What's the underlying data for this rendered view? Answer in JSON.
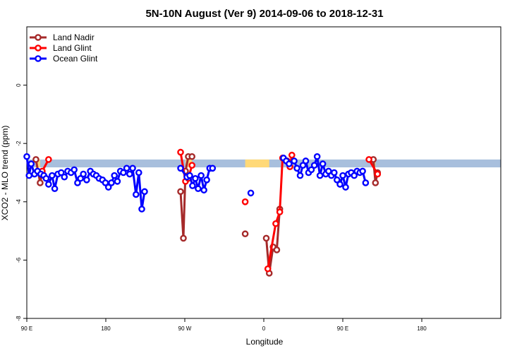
{
  "chart_data": {
    "type": "line",
    "title": "5N-10N August (Ver 9)   2014-09-06 to 2018-12-31",
    "xlabel": "Longitude",
    "ylabel": "XCO2 - MLO trend (ppm)",
    "xlim": [
      -90,
      180
    ],
    "ylim": [
      -8,
      2
    ],
    "x_ticks": [
      {
        "value": -90,
        "label": "90 E"
      },
      {
        "value": -45,
        "label": "180"
      },
      {
        "value": 0,
        "label": "90 W"
      },
      {
        "value": 45,
        "label": "0"
      },
      {
        "value": 90,
        "label": "90 E"
      },
      {
        "value": 135,
        "label": "180"
      }
    ],
    "y_ticks": [
      {
        "value": 0,
        "label": "0"
      },
      {
        "value": -2,
        "label": "-2"
      },
      {
        "value": -4,
        "label": "-4"
      },
      {
        "value": -6,
        "label": "-6"
      },
      {
        "value": -8,
        "label": "-8"
      }
    ],
    "grid": false,
    "legend_position": "top-left",
    "landmask_band": {
      "y_range": [
        -2.55,
        -2.82
      ],
      "ocean_color": "#a8bfdd",
      "land_color": "#ffd978",
      "land_spans": [
        [
          -84.8,
          -82.4
        ],
        [
          0.4,
          4.1
        ],
        [
          34.4,
          48.1
        ],
        [
          107.4,
          108.6
        ]
      ]
    },
    "series": [
      {
        "name": "Land Nadir",
        "color": "#a52a2a",
        "segments": [
          [
            [
              -84.8,
              -2.55
            ],
            [
              -82.4,
              -3.35
            ],
            [
              -81.2,
              -3.0
            ]
          ],
          [
            [
              -2.4,
              -3.65
            ],
            [
              -0.8,
              -5.25
            ],
            [
              0.4,
              -2.95
            ],
            [
              2.0,
              -2.45
            ],
            [
              4.1,
              -2.45
            ]
          ],
          [
            [
              34.4,
              -5.1
            ]
          ],
          [
            [
              46.4,
              -5.25
            ],
            [
              48.1,
              -6.45
            ],
            [
              50.3,
              -5.55
            ],
            [
              52.4,
              -5.65
            ],
            [
              54.1,
              -4.25
            ]
          ],
          [
            [
              107.4,
              -2.55
            ],
            [
              108.6,
              -3.35
            ],
            [
              109.8,
              -3.0
            ]
          ]
        ]
      },
      {
        "name": "Land Glint",
        "color": "#ff0000",
        "segments": [
          [
            [
              -77.6,
              -2.55
            ],
            [
              -81.2,
              -2.95
            ]
          ],
          [
            [
              -2.4,
              -2.3
            ],
            [
              0.4,
              -3.3
            ],
            [
              2.0,
              -3.2
            ],
            [
              4.1,
              -2.75
            ]
          ],
          [
            [
              34.4,
              -4.0
            ]
          ],
          [
            [
              47.3,
              -6.3
            ],
            [
              51.8,
              -4.75
            ],
            [
              54.1,
              -4.35
            ],
            [
              55.7,
              -2.5
            ],
            [
              58.3,
              -2.6
            ],
            [
              59.9,
              -2.8
            ],
            [
              61.0,
              -2.4
            ]
          ],
          [
            [
              104.9,
              -2.55
            ],
            [
              109.8,
              -3.05
            ]
          ]
        ]
      },
      {
        "name": "Ocean Glint",
        "color": "#0000ff",
        "segments": [
          [
            [
              -90.0,
              -2.45
            ],
            [
              -88.7,
              -3.1
            ],
            [
              -87.5,
              -2.7
            ],
            [
              -85.6,
              -3.05
            ],
            [
              -83.9,
              -2.95
            ],
            [
              -82.0,
              -3.05
            ],
            [
              -80.3,
              -3.1
            ],
            [
              -79.0,
              -3.2
            ],
            [
              -77.6,
              -3.4
            ],
            [
              -75.6,
              -3.1
            ],
            [
              -74.1,
              -3.55
            ],
            [
              -72.3,
              -3.05
            ],
            [
              -70.4,
              -3.0
            ],
            [
              -68.6,
              -3.15
            ],
            [
              -66.7,
              -2.95
            ],
            [
              -64.8,
              -3.0
            ],
            [
              -63.0,
              -2.9
            ],
            [
              -61.1,
              -3.35
            ],
            [
              -59.4,
              -3.2
            ],
            [
              -57.8,
              -3.05
            ],
            [
              -55.9,
              -3.25
            ],
            [
              -53.8,
              -2.95
            ],
            [
              -52.1,
              -3.05
            ],
            [
              -50.4,
              -3.1
            ],
            [
              -48.8,
              -3.2
            ],
            [
              -46.9,
              -3.25
            ],
            [
              -45.2,
              -3.35
            ],
            [
              -43.5,
              -3.5
            ],
            [
              -41.8,
              -3.35
            ],
            [
              -40.1,
              -3.1
            ],
            [
              -38.4,
              -3.3
            ],
            [
              -36.7,
              -2.95
            ],
            [
              -35.0,
              -3.0
            ],
            [
              -33.1,
              -2.85
            ],
            [
              -31.4,
              -3.05
            ],
            [
              -29.7,
              -2.85
            ],
            [
              -27.8,
              -3.75
            ],
            [
              -26.2,
              -3.0
            ],
            [
              -24.5,
              -4.25
            ],
            [
              -22.9,
              -3.65
            ]
          ],
          [
            [
              -2.4,
              -2.85
            ],
            [
              1.2,
              -3.15
            ],
            [
              2.8,
              -3.1
            ],
            [
              4.4,
              -3.45
            ],
            [
              6.0,
              -3.2
            ],
            [
              7.6,
              -3.55
            ],
            [
              9.3,
              -3.1
            ],
            [
              10.9,
              -3.6
            ],
            [
              12.5,
              -3.25
            ],
            [
              14.2,
              -2.85
            ],
            [
              15.8,
              -2.85
            ]
          ],
          [
            [
              37.6,
              -3.7
            ]
          ],
          [
            [
              56.2,
              -2.5
            ],
            [
              57.8,
              -2.6
            ],
            [
              59.4,
              -2.7
            ],
            [
              62.3,
              -2.6
            ],
            [
              63.9,
              -2.85
            ],
            [
              65.7,
              -3.1
            ],
            [
              67.3,
              -2.75
            ],
            [
              68.9,
              -2.6
            ],
            [
              70.5,
              -3.0
            ],
            [
              72.1,
              -2.9
            ],
            [
              73.8,
              -2.75
            ],
            [
              75.4,
              -2.45
            ],
            [
              77.0,
              -3.1
            ],
            [
              78.6,
              -2.7
            ],
            [
              80.3,
              -3.05
            ],
            [
              81.9,
              -2.95
            ],
            [
              83.5,
              -3.1
            ],
            [
              85.1,
              -3.0
            ],
            [
              86.7,
              -3.25
            ],
            [
              88.4,
              -3.4
            ],
            [
              90.0,
              -3.1
            ],
            [
              91.6,
              -3.5
            ],
            [
              93.2,
              -3.05
            ],
            [
              94.8,
              -3.0
            ],
            [
              96.5,
              -3.1
            ],
            [
              98.1,
              -2.95
            ],
            [
              99.7,
              -3.0
            ],
            [
              101.3,
              -2.95
            ],
            [
              103.0,
              -3.35
            ]
          ]
        ]
      }
    ]
  }
}
